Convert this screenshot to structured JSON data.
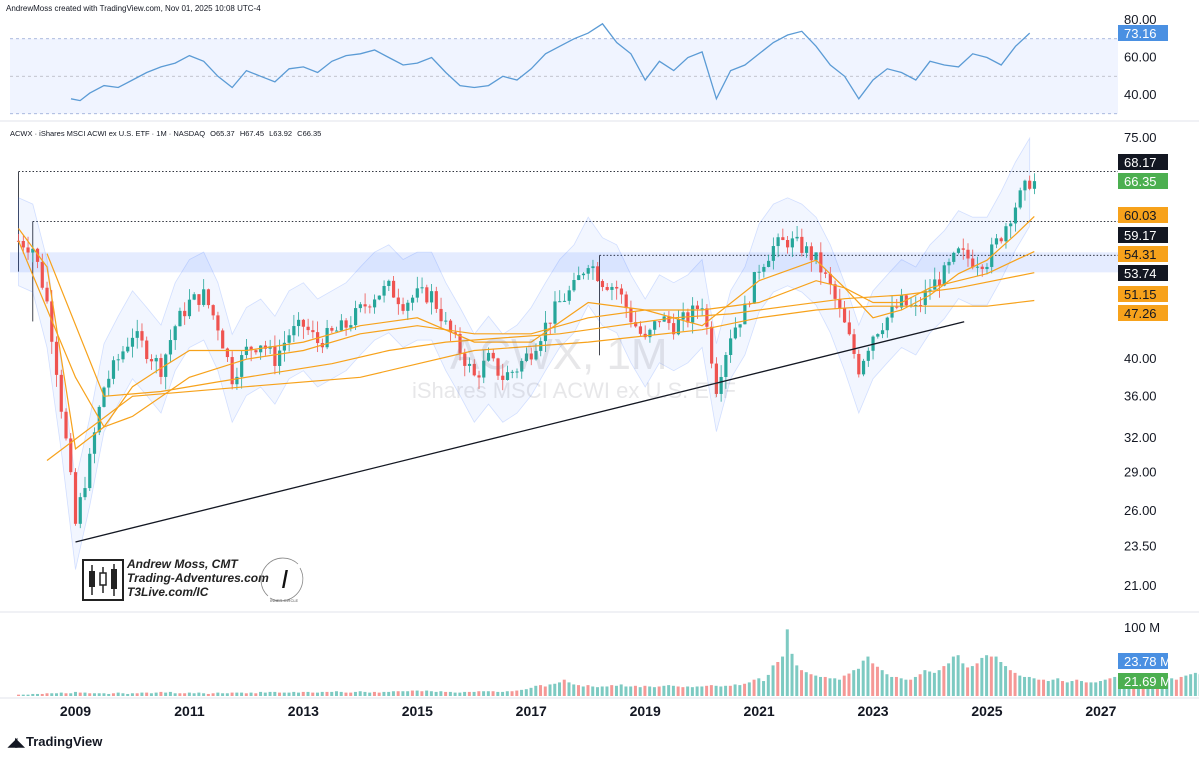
{
  "header": {
    "credit": "AndrewMoss created with TradingView.com, Nov 01, 2025 10:08 UTC-4"
  },
  "symbol_bar": {
    "name": "ACWX · iShares MSCI ACWI ex U.S. ETF · 1M · NASDAQ",
    "open": "O65.37",
    "high": "H67.45",
    "low": "L63.92",
    "close": "C66.35"
  },
  "watermark": {
    "ticker": "ACWX, 1M",
    "name": "iShares MSCI ACWI ex U.S. ETF"
  },
  "author": {
    "line1": "Andrew Moss, CMT",
    "line2": "Trading-Adventures.com",
    "line3": "T3Live.com/IC",
    "seal_text": "INNER CIRCLE"
  },
  "footer": {
    "brand": "TradingView"
  },
  "colors": {
    "up": "#26a69a",
    "down": "#ef5350",
    "ma": "#f7a21b",
    "rsi": "#2962ff",
    "band": "#2962ff"
  },
  "chart_data": [
    {
      "type": "line",
      "panel": "rsi",
      "y_ticks": [
        "80.00",
        "60.00",
        "40.00"
      ],
      "y_range": [
        32,
        82
      ],
      "guide_levels": [
        70,
        50,
        30
      ],
      "last_value_label": "73.16",
      "x": [
        2008.92,
        2009.08,
        2009.25,
        2009.5,
        2009.75,
        2010.0,
        2010.25,
        2010.5,
        2010.75,
        2011.0,
        2011.25,
        2011.5,
        2011.75,
        2012.0,
        2012.25,
        2012.5,
        2012.75,
        2013.0,
        2013.25,
        2013.5,
        2013.75,
        2014.0,
        2014.25,
        2014.5,
        2014.75,
        2015.0,
        2015.25,
        2015.5,
        2015.75,
        2016.0,
        2016.25,
        2016.5,
        2016.75,
        2017.0,
        2017.25,
        2017.5,
        2017.75,
        2018.0,
        2018.25,
        2018.5,
        2018.75,
        2019.0,
        2019.25,
        2019.5,
        2019.75,
        2020.0,
        2020.25,
        2020.5,
        2020.75,
        2021.0,
        2021.25,
        2021.5,
        2021.75,
        2022.0,
        2022.25,
        2022.5,
        2022.75,
        2023.0,
        2023.25,
        2023.5,
        2023.75,
        2024.0,
        2024.25,
        2024.5,
        2024.75,
        2025.0,
        2025.25,
        2025.5,
        2025.75
      ],
      "values": [
        38,
        37,
        41,
        45,
        44,
        48,
        52,
        55,
        57,
        61,
        58,
        50,
        44,
        53,
        50,
        47,
        54,
        55,
        52,
        58,
        61,
        62,
        64,
        60,
        56,
        57,
        60,
        52,
        45,
        44,
        45,
        50,
        48,
        54,
        62,
        66,
        70,
        73,
        78,
        68,
        62,
        48,
        58,
        53,
        60,
        63,
        38,
        53,
        56,
        62,
        68,
        72,
        74,
        66,
        56,
        50,
        38,
        48,
        54,
        52,
        48,
        58,
        56,
        55,
        62,
        60,
        56,
        66,
        73
      ]
    },
    {
      "type": "candlestick",
      "panel": "price",
      "scale": "log",
      "y_ticks": [
        "75.00",
        "40.00",
        "36.00",
        "32.00",
        "29.00",
        "26.00",
        "23.50",
        "21.00"
      ],
      "x_ticks": [
        "2009",
        "2011",
        "2013",
        "2015",
        "2017",
        "2019",
        "2021",
        "2023",
        "2025",
        "2027"
      ],
      "x_range": [
        2007.85,
        2027.3
      ],
      "y_range": [
        20.0,
        78.0
      ],
      "price_labels": [
        "68.17",
        "66.35",
        "60.03",
        "59.17",
        "54.31",
        "53.74",
        "51.15",
        "47.26"
      ],
      "horizontal_levels": [
        68.17,
        59.17,
        53.74
      ],
      "shaded_zone": [
        51.2,
        54.2
      ],
      "trendline": {
        "from": [
          2009.0,
          23.8
        ],
        "to": [
          2024.6,
          44.5
        ]
      },
      "close_path": {
        "x": [
          2008.0,
          2008.25,
          2008.5,
          2008.75,
          2009.0,
          2009.25,
          2009.5,
          2009.75,
          2010.0,
          2010.25,
          2010.5,
          2010.75,
          2011.0,
          2011.25,
          2011.5,
          2011.75,
          2012.0,
          2012.25,
          2012.5,
          2012.75,
          2013.0,
          2013.25,
          2013.5,
          2013.75,
          2014.0,
          2014.25,
          2014.5,
          2014.75,
          2015.0,
          2015.25,
          2015.5,
          2015.75,
          2016.0,
          2016.25,
          2016.5,
          2016.75,
          2017.0,
          2017.25,
          2017.5,
          2017.75,
          2018.0,
          2018.25,
          2018.5,
          2018.75,
          2019.0,
          2019.25,
          2019.5,
          2019.75,
          2020.0,
          2020.25,
          2020.5,
          2020.75,
          2021.0,
          2021.25,
          2021.5,
          2021.75,
          2022.0,
          2022.25,
          2022.5,
          2022.75,
          2023.0,
          2023.25,
          2023.5,
          2023.75,
          2024.0,
          2024.25,
          2024.5,
          2024.75,
          2025.0,
          2025.25,
          2025.5,
          2025.75
        ],
        "values": [
          56,
          55,
          47,
          35,
          25,
          30,
          37,
          40,
          43,
          41,
          39,
          44,
          47,
          48,
          44,
          38,
          41,
          42,
          40,
          43,
          44,
          42,
          43,
          44,
          46,
          48,
          49,
          47,
          48,
          48,
          44,
          41,
          38,
          40,
          38,
          39,
          41,
          44,
          47,
          49,
          53,
          50,
          49,
          45,
          42,
          45,
          44,
          45,
          47,
          37,
          43,
          46,
          52,
          55,
          56,
          55,
          53,
          49,
          44,
          39,
          43,
          45,
          47,
          46,
          49,
          51,
          54,
          53,
          53,
          57,
          62,
          66.35
        ]
      },
      "moving_averages": [
        {
          "x": [
            2008.0,
            2008.5,
            2009.0,
            2009.5,
            2010.0,
            2010.5,
            2011.0,
            2012.0,
            2013.0,
            2014.0,
            2015.0,
            2016.0,
            2017.0,
            2018.0,
            2019.0,
            2020.0,
            2021.0,
            2022.0,
            2022.5,
            2023.0,
            2023.5,
            2024.0,
            2024.5,
            2025.0,
            2025.5,
            2025.83
          ],
          "values": [
            58,
            52,
            31,
            33,
            37,
            39,
            41,
            41,
            42,
            44,
            45,
            42,
            42,
            47,
            46,
            44,
            50,
            53,
            49,
            45,
            46,
            48,
            51,
            53,
            57,
            60.03
          ]
        },
        {
          "x": [
            2008.0,
            2009.0,
            2009.5,
            2010.0,
            2011.0,
            2012.0,
            2013.0,
            2014.0,
            2015.0,
            2016.0,
            2017.0,
            2018.0,
            2019.0,
            2020.0,
            2021.0,
            2022.0,
            2022.5,
            2023.0,
            2023.5,
            2024.0,
            2024.5,
            2025.0,
            2025.5,
            2025.83
          ],
          "values": [
            56,
            38,
            33,
            34,
            38,
            40,
            41,
            43,
            44,
            43,
            43,
            45,
            46,
            46,
            47,
            50,
            49,
            47,
            47,
            49,
            50,
            51,
            53,
            54.31
          ]
        },
        {
          "x": [
            2008.5,
            2009.5,
            2010.5,
            2011.5,
            2012.5,
            2013.5,
            2014.5,
            2015.5,
            2016.5,
            2017.5,
            2018.5,
            2019.5,
            2020.5,
            2021.5,
            2022.5,
            2023.5,
            2024.5,
            2025.83
          ],
          "values": [
            54,
            36,
            36.5,
            37.5,
            38.5,
            39.5,
            41,
            42,
            42.5,
            43,
            44,
            45,
            45.5,
            46.5,
            47.5,
            48,
            49,
            51.15
          ]
        },
        {
          "x": [
            2008.5,
            2010.0,
            2012.0,
            2014.0,
            2016.0,
            2018.0,
            2020.0,
            2021.0,
            2022.0,
            2023.0,
            2024.0,
            2025.0,
            2025.83
          ],
          "values": [
            30,
            36,
            37,
            38,
            41,
            42,
            43.5,
            45,
            46,
            46.5,
            46.5,
            46.5,
            47.26
          ]
        }
      ]
    },
    {
      "type": "bar",
      "panel": "volume",
      "y_ticks": [
        "100 M"
      ],
      "y_range": [
        0,
        110
      ],
      "last_value_labels": [
        "23.78 M",
        "21.69 M"
      ],
      "start": 2008.0,
      "step": 0.0833,
      "values": [
        2,
        2,
        2,
        3,
        3,
        3,
        4,
        4,
        4,
        5,
        4,
        4,
        6,
        5,
        5,
        4,
        4,
        4,
        4,
        3,
        4,
        5,
        4,
        3,
        4,
        4,
        5,
        5,
        4,
        5,
        6,
        5,
        6,
        4,
        4,
        4,
        5,
        4,
        5,
        4,
        3,
        4,
        5,
        4,
        4,
        5,
        5,
        5,
        4,
        5,
        4,
        6,
        5,
        6,
        6,
        5,
        5,
        5,
        6,
        5,
        6,
        6,
        5,
        5,
        6,
        6,
        6,
        7,
        6,
        5,
        5,
        6,
        7,
        6,
        5,
        6,
        5,
        6,
        6,
        7,
        7,
        7,
        7,
        8,
        8,
        7,
        8,
        7,
        6,
        7,
        6,
        6,
        5,
        5,
        6,
        6,
        6,
        7,
        7,
        7,
        7,
        6,
        6,
        7,
        7,
        8,
        9,
        10,
        12,
        15,
        16,
        14,
        17,
        18,
        20,
        24,
        20,
        17,
        16,
        14,
        16,
        14,
        13,
        14,
        14,
        16,
        15,
        17,
        14,
        14,
        15,
        13,
        15,
        14,
        13,
        14,
        15,
        16,
        15,
        14,
        13,
        14,
        13,
        14,
        14,
        15,
        16,
        15,
        14,
        15,
        15,
        17,
        16,
        18,
        20,
        24,
        26,
        22,
        31,
        45,
        50,
        58,
        98,
        62,
        45,
        38,
        35,
        32,
        30,
        28,
        28,
        26,
        26,
        24,
        30,
        33,
        38,
        40,
        52,
        58,
        48,
        43,
        38,
        32,
        28,
        28,
        26,
        24,
        24,
        28,
        32,
        38,
        36,
        34,
        38,
        44,
        48,
        58,
        60,
        48,
        42,
        44,
        48,
        56,
        60,
        58,
        58,
        50,
        44,
        38,
        34,
        30,
        28,
        28,
        26,
        24,
        24,
        22,
        24,
        26,
        22,
        20,
        22,
        24,
        22,
        20,
        20,
        20,
        22,
        24,
        26,
        28,
        26,
        26,
        24,
        22,
        22,
        22,
        22,
        20,
        20,
        24,
        28,
        26,
        24,
        28,
        30,
        32,
        34,
        32,
        30,
        28,
        24,
        22,
        21.69
      ]
    }
  ]
}
